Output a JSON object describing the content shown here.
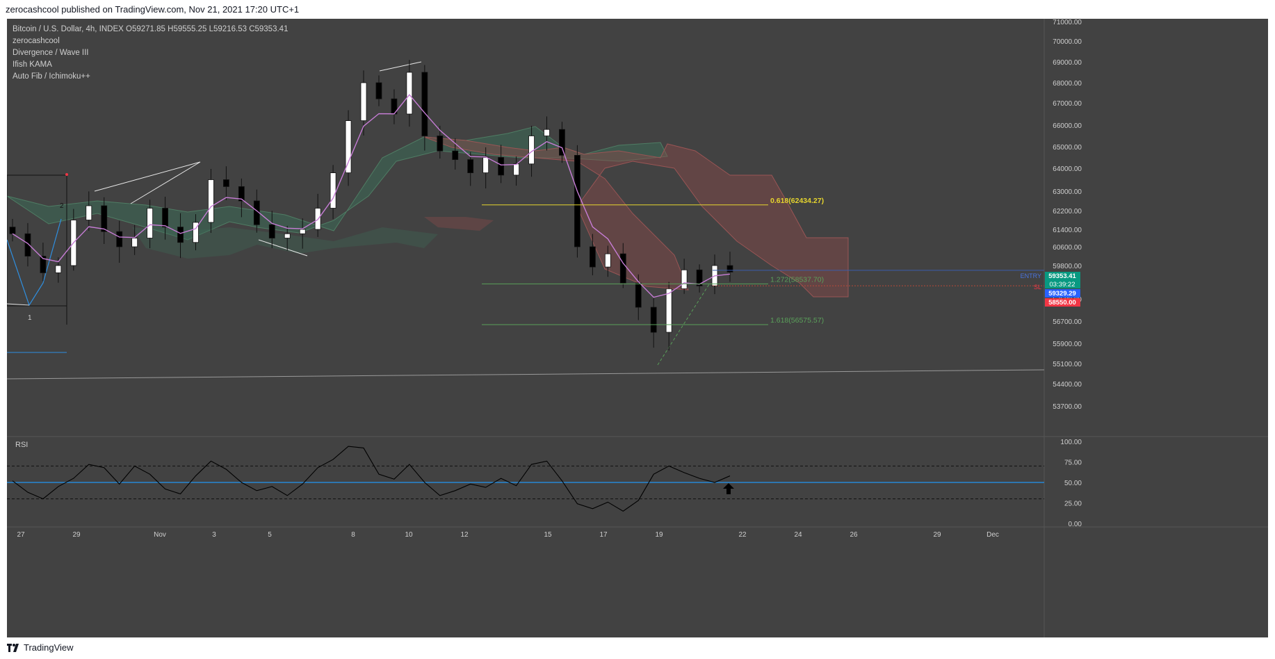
{
  "header": {
    "publish_text": "zerocashcool published on TradingView.com, Nov 21, 2021 17:20 UTC+1"
  },
  "legend": {
    "symbol": "Bitcoin / U.S. Dollar, 4h, INDEX",
    "o_label": "O",
    "o_value": "59271.85",
    "h_label": "H",
    "h_value": "59555.25",
    "l_label": "L",
    "l_value": "59216.53",
    "c_label": "C",
    "c_value": "59353.41",
    "lines": [
      "zerocashcool",
      "Divergence / Wave III",
      "Ifish KAMA",
      "Auto Fib / Ichimoku++"
    ]
  },
  "price_axis": {
    "ticks": [
      "71000.00",
      "70000.00",
      "69000.00",
      "68000.00",
      "67000.00",
      "66000.00",
      "65000.00",
      "64000.00",
      "63000.00",
      "62200.00",
      "61400.00",
      "60600.00",
      "59800.00",
      "57500.00",
      "56700.00",
      "55900.00",
      "55100.00",
      "54400.00",
      "53700.00"
    ],
    "tick_values": [
      71000,
      70000,
      69000,
      68000,
      67000,
      66000,
      65000,
      64000,
      63000,
      62200,
      61400,
      60600,
      59800,
      57500,
      56700,
      55900,
      55100,
      54400,
      53700
    ],
    "current_price": "59353.41",
    "countdown": "03:39:22",
    "entry_price": "59329.29",
    "sl_price": "58550.00"
  },
  "colors": {
    "background": "#424242",
    "up_candle": "#ffffff",
    "down_candle": "#000000",
    "cloud_green": "#3d6b57",
    "cloud_red": "#8a4a4a",
    "kama": "#c77dd6",
    "fib_618": "#e6d52e",
    "fib_green": "#5aa05a",
    "entry_blue": "#2962ff",
    "sl_red": "#f23645",
    "price_green": "#089981",
    "rsi_line": "#000000",
    "rsi_mid": "#2196f3"
  },
  "annotations": {
    "fib_0618": "0.618(62434.27)",
    "fib_1272": "1.272(58537.70)",
    "fib_1618": "1.618(56575.57)",
    "entry": "ENTRY",
    "sl": "SL",
    "wave_1": "1",
    "wave_2": "2"
  },
  "rsi": {
    "label": "RSI",
    "ticks": [
      "100.00",
      "75.00",
      "50.00",
      "25.00",
      "0.00"
    ],
    "tick_values": [
      100,
      75,
      50,
      25,
      0
    ],
    "upper_band": 70,
    "lower_band": 30,
    "mid": 50
  },
  "time_axis": {
    "labels": [
      "27",
      "29",
      "Nov",
      "3",
      "5",
      "8",
      "10",
      "12",
      "15",
      "17",
      "19",
      "22",
      "24",
      "26",
      "29",
      "Dec"
    ]
  },
  "footer": {
    "brand": "TradingView",
    "logo_icon": "tradingview-logo-icon"
  },
  "chart_data": {
    "type": "candlestick",
    "title": "Bitcoin / U.S. Dollar, 4h, INDEX",
    "timeframe": "4h",
    "x_labels": [
      "27",
      "29",
      "Nov",
      "3",
      "5",
      "8",
      "10",
      "12",
      "15",
      "17",
      "19",
      "22",
      "24",
      "26",
      "29",
      "Dec"
    ],
    "close_series": [
      61200,
      60200,
      59300,
      59800,
      61800,
      62400,
      61300,
      60600,
      61000,
      62300,
      61500,
      60800,
      61700,
      63500,
      63200,
      62600,
      61600,
      61000,
      61200,
      61400,
      62300,
      63800,
      66200,
      68000,
      67200,
      66500,
      68500,
      65500,
      64800,
      64400,
      63800,
      64500,
      63700,
      64200,
      65500,
      65800,
      64600,
      60600,
      59700,
      60300,
      58600,
      57200,
      56300,
      58200,
      59500,
      58400,
      59800,
      59353
    ],
    "last": {
      "open": 59271.85,
      "high": 59555.25,
      "low": 59216.53,
      "close": 59353.41
    },
    "fib_levels": [
      {
        "label": "0.618",
        "value": 62434.27
      },
      {
        "label": "1.272",
        "value": 58537.7
      },
      {
        "label": "1.618",
        "value": 56575.57
      }
    ],
    "entry": 59329.29,
    "stop_loss": 58550.0,
    "ylim": [
      53200,
      71200
    ],
    "rsi_values": [
      52,
      38,
      30,
      45,
      55,
      72,
      68,
      48,
      70,
      60,
      42,
      36,
      58,
      76,
      66,
      50,
      40,
      45,
      34,
      48,
      68,
      78,
      94,
      92,
      60,
      54,
      72,
      50,
      34,
      40,
      48,
      44,
      55,
      46,
      72,
      76,
      52,
      24,
      18,
      26,
      15,
      28,
      60,
      70,
      62,
      55,
      50,
      58
    ],
    "rsi_ylim": [
      0,
      100
    ]
  }
}
